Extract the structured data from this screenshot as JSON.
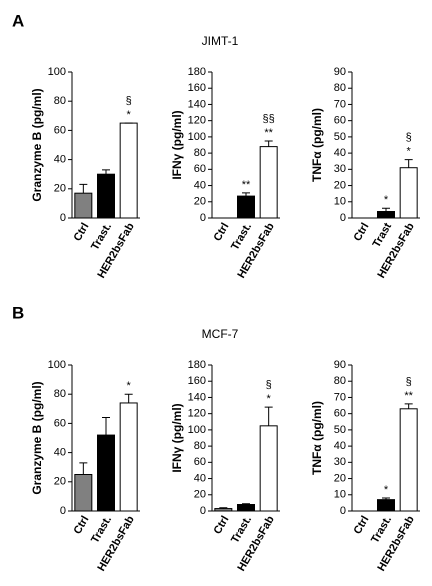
{
  "panels": [
    {
      "label": "A",
      "title": "JIMT-1"
    },
    {
      "label": "B",
      "title": "MCF-7"
    }
  ],
  "chart_data": [
    {
      "type": "bar",
      "ylabel": "Granzyme B (pg/ml)",
      "categories": [
        "Ctrl",
        "Trast.",
        "HER2bsFab"
      ],
      "values": [
        17,
        30,
        65
      ],
      "errors": [
        6,
        3,
        0
      ],
      "colors": [
        "#808080",
        "#000000",
        "#ffffff"
      ],
      "ylim": [
        0,
        100
      ],
      "yticks": [
        0,
        20,
        40,
        60,
        80,
        100
      ],
      "annotations": [
        null,
        null,
        [
          "§",
          "*"
        ]
      ]
    },
    {
      "type": "bar",
      "ylabel": "IFNγ (pg/ml)",
      "categories": [
        "Ctrl",
        "Trast.",
        "HER2bsFab"
      ],
      "values": [
        0,
        27,
        88
      ],
      "errors": [
        0,
        4,
        7
      ],
      "colors": [
        "#808080",
        "#000000",
        "#ffffff"
      ],
      "ylim": [
        0,
        180
      ],
      "yticks": [
        0,
        20,
        40,
        60,
        80,
        100,
        120,
        140,
        160,
        180
      ],
      "annotations": [
        null,
        [
          "**"
        ],
        [
          "§§",
          "**"
        ]
      ]
    },
    {
      "type": "bar",
      "ylabel": "TNFα (pg/ml)",
      "categories": [
        "Ctrl",
        "Trast",
        "HER2bsFab"
      ],
      "values": [
        0,
        4,
        31
      ],
      "errors": [
        0,
        2,
        5
      ],
      "colors": [
        "#808080",
        "#000000",
        "#ffffff"
      ],
      "ylim": [
        0,
        90
      ],
      "yticks": [
        0,
        10,
        20,
        30,
        40,
        50,
        60,
        70,
        80,
        90
      ],
      "annotations": [
        null,
        [
          "*"
        ],
        [
          "§",
          "*"
        ]
      ]
    },
    {
      "type": "bar",
      "ylabel": "Granzyme B (pg/ml)",
      "categories": [
        "Ctrl",
        "Trast.",
        "HER2bsFab"
      ],
      "values": [
        25,
        52,
        74
      ],
      "errors": [
        8,
        12,
        6
      ],
      "colors": [
        "#808080",
        "#000000",
        "#ffffff"
      ],
      "ylim": [
        0,
        100
      ],
      "yticks": [
        0,
        20,
        40,
        60,
        80,
        100
      ],
      "annotations": [
        null,
        null,
        [
          "*"
        ]
      ]
    },
    {
      "type": "bar",
      "ylabel": "IFNγ (pg/ml)",
      "categories": [
        "Ctrl",
        "Trast.",
        "HER2bsFab"
      ],
      "values": [
        3,
        8,
        105
      ],
      "errors": [
        1,
        1,
        23
      ],
      "colors": [
        "#808080",
        "#000000",
        "#ffffff"
      ],
      "ylim": [
        0,
        180
      ],
      "yticks": [
        0,
        20,
        40,
        60,
        80,
        100,
        120,
        140,
        160,
        180
      ],
      "annotations": [
        null,
        null,
        [
          "§",
          "*"
        ]
      ]
    },
    {
      "type": "bar",
      "ylabel": "TNFα (pg/ml)",
      "categories": [
        "Ctrl",
        "Trast.",
        "HER2bsFab"
      ],
      "values": [
        0,
        7,
        63
      ],
      "errors": [
        0,
        1,
        3
      ],
      "colors": [
        "#808080",
        "#000000",
        "#ffffff"
      ],
      "ylim": [
        0,
        90
      ],
      "yticks": [
        0,
        10,
        20,
        30,
        40,
        50,
        60,
        70,
        80,
        90
      ],
      "annotations": [
        null,
        [
          "*"
        ],
        [
          "§",
          "**"
        ]
      ]
    }
  ]
}
